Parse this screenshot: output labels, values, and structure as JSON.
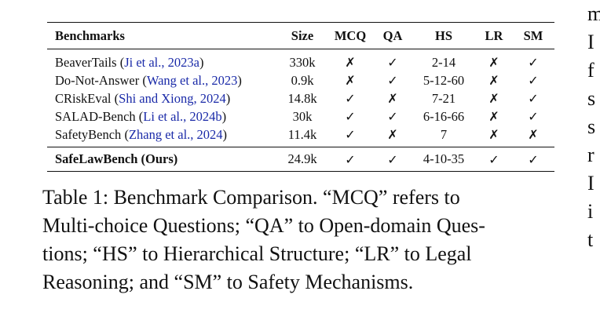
{
  "table": {
    "columns": [
      "Benchmarks",
      "Size",
      "MCQ",
      "QA",
      "HS",
      "LR",
      "SM"
    ],
    "rows": [
      {
        "name": "BeaverTails",
        "cite": "Ji et al., 2023a",
        "size": "330k",
        "mcq": "✗",
        "qa": "✓",
        "hs": "2-14",
        "lr": "✗",
        "sm": "✓"
      },
      {
        "name": "Do-Not-Answer",
        "cite": "Wang et al., 2023",
        "size": "0.9k",
        "mcq": "✗",
        "qa": "✓",
        "hs": "5-12-60",
        "lr": "✗",
        "sm": "✓"
      },
      {
        "name": "CRiskEval",
        "cite": "Shi and Xiong, 2024",
        "size": "14.8k",
        "mcq": "✓",
        "qa": "✗",
        "hs": "7-21",
        "lr": "✗",
        "sm": "✓"
      },
      {
        "name": "SALAD-Bench",
        "cite": "Li et al., 2024b",
        "size": "30k",
        "mcq": "✓",
        "qa": "✓",
        "hs": "6-16-66",
        "lr": "✗",
        "sm": "✓"
      },
      {
        "name": "SafetyBench",
        "cite": "Zhang et al., 2024",
        "size": "11.4k",
        "mcq": "✓",
        "qa": "✗",
        "hs": "7",
        "lr": "✗",
        "sm": "✗"
      }
    ],
    "ours": {
      "name": "SafeLawBench (Ours)",
      "size": "24.9k",
      "mcq": "✓",
      "qa": "✓",
      "hs": "4-10-35",
      "lr": "✓",
      "sm": "✓"
    }
  },
  "caption": {
    "lines": [
      "Table 1:  Benchmark Comparison.  “MCQ” refers to",
      "Multi-choice Questions; “QA” to Open-domain Ques-",
      "tions; “HS” to Hierarchical Structure; “LR” to Legal",
      "Reasoning; and “SM” to Safety Mechanisms."
    ]
  },
  "right_column_fragments": [
    "m",
    "I",
    "f",
    "s",
    "s",
    "r",
    "I",
    "i",
    "t"
  ]
}
